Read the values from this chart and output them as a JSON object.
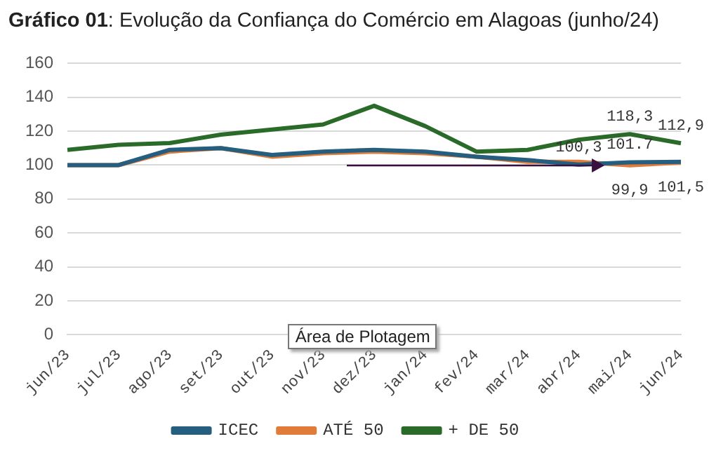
{
  "chart_data": {
    "type": "line",
    "title": "Gráfico 01: Evolução da Confiança do Comércio em Alagoas (junho/24)",
    "categories": [
      "jun/23",
      "jul/23",
      "ago/23",
      "set/23",
      "out/23",
      "nov/23",
      "dez/23",
      "jan/24",
      "fev/24",
      "mar/24",
      "abr/24",
      "mai/24",
      "jun/24"
    ],
    "series": [
      {
        "name": "ICEC",
        "color": "#255e7e",
        "values": [
          100,
          100,
          109,
          110,
          106,
          108,
          109,
          108,
          105,
          103,
          100.3,
          101.7,
          102
        ],
        "value_labels": [
          null,
          null,
          null,
          null,
          null,
          null,
          null,
          null,
          null,
          null,
          "100,3",
          "101.7",
          null
        ]
      },
      {
        "name": "ATÉ 50",
        "color": "#e07b39",
        "values": [
          100,
          100,
          108,
          110,
          105,
          107,
          108,
          107,
          105,
          102,
          102,
          99.9,
          101.5
        ],
        "value_labels": [
          null,
          null,
          null,
          null,
          null,
          null,
          null,
          null,
          null,
          null,
          null,
          "99,9",
          "101,5"
        ]
      },
      {
        "name": "+ DE 50",
        "color": "#2a6b2a",
        "values": [
          109,
          112,
          113,
          118,
          121,
          124,
          135,
          123,
          108,
          109,
          115,
          118.3,
          112.9
        ],
        "value_labels": [
          null,
          null,
          null,
          null,
          null,
          null,
          null,
          null,
          null,
          null,
          null,
          "118,3",
          "112,9"
        ]
      }
    ],
    "ylim": [
      0,
      160
    ],
    "yticks": [
      0,
      20,
      40,
      60,
      80,
      100,
      120,
      140,
      160
    ],
    "grid": "y",
    "legend": "bottom",
    "marker": "none",
    "line_style": "solid",
    "annotations": [
      "Área de Plotagem"
    ]
  }
}
